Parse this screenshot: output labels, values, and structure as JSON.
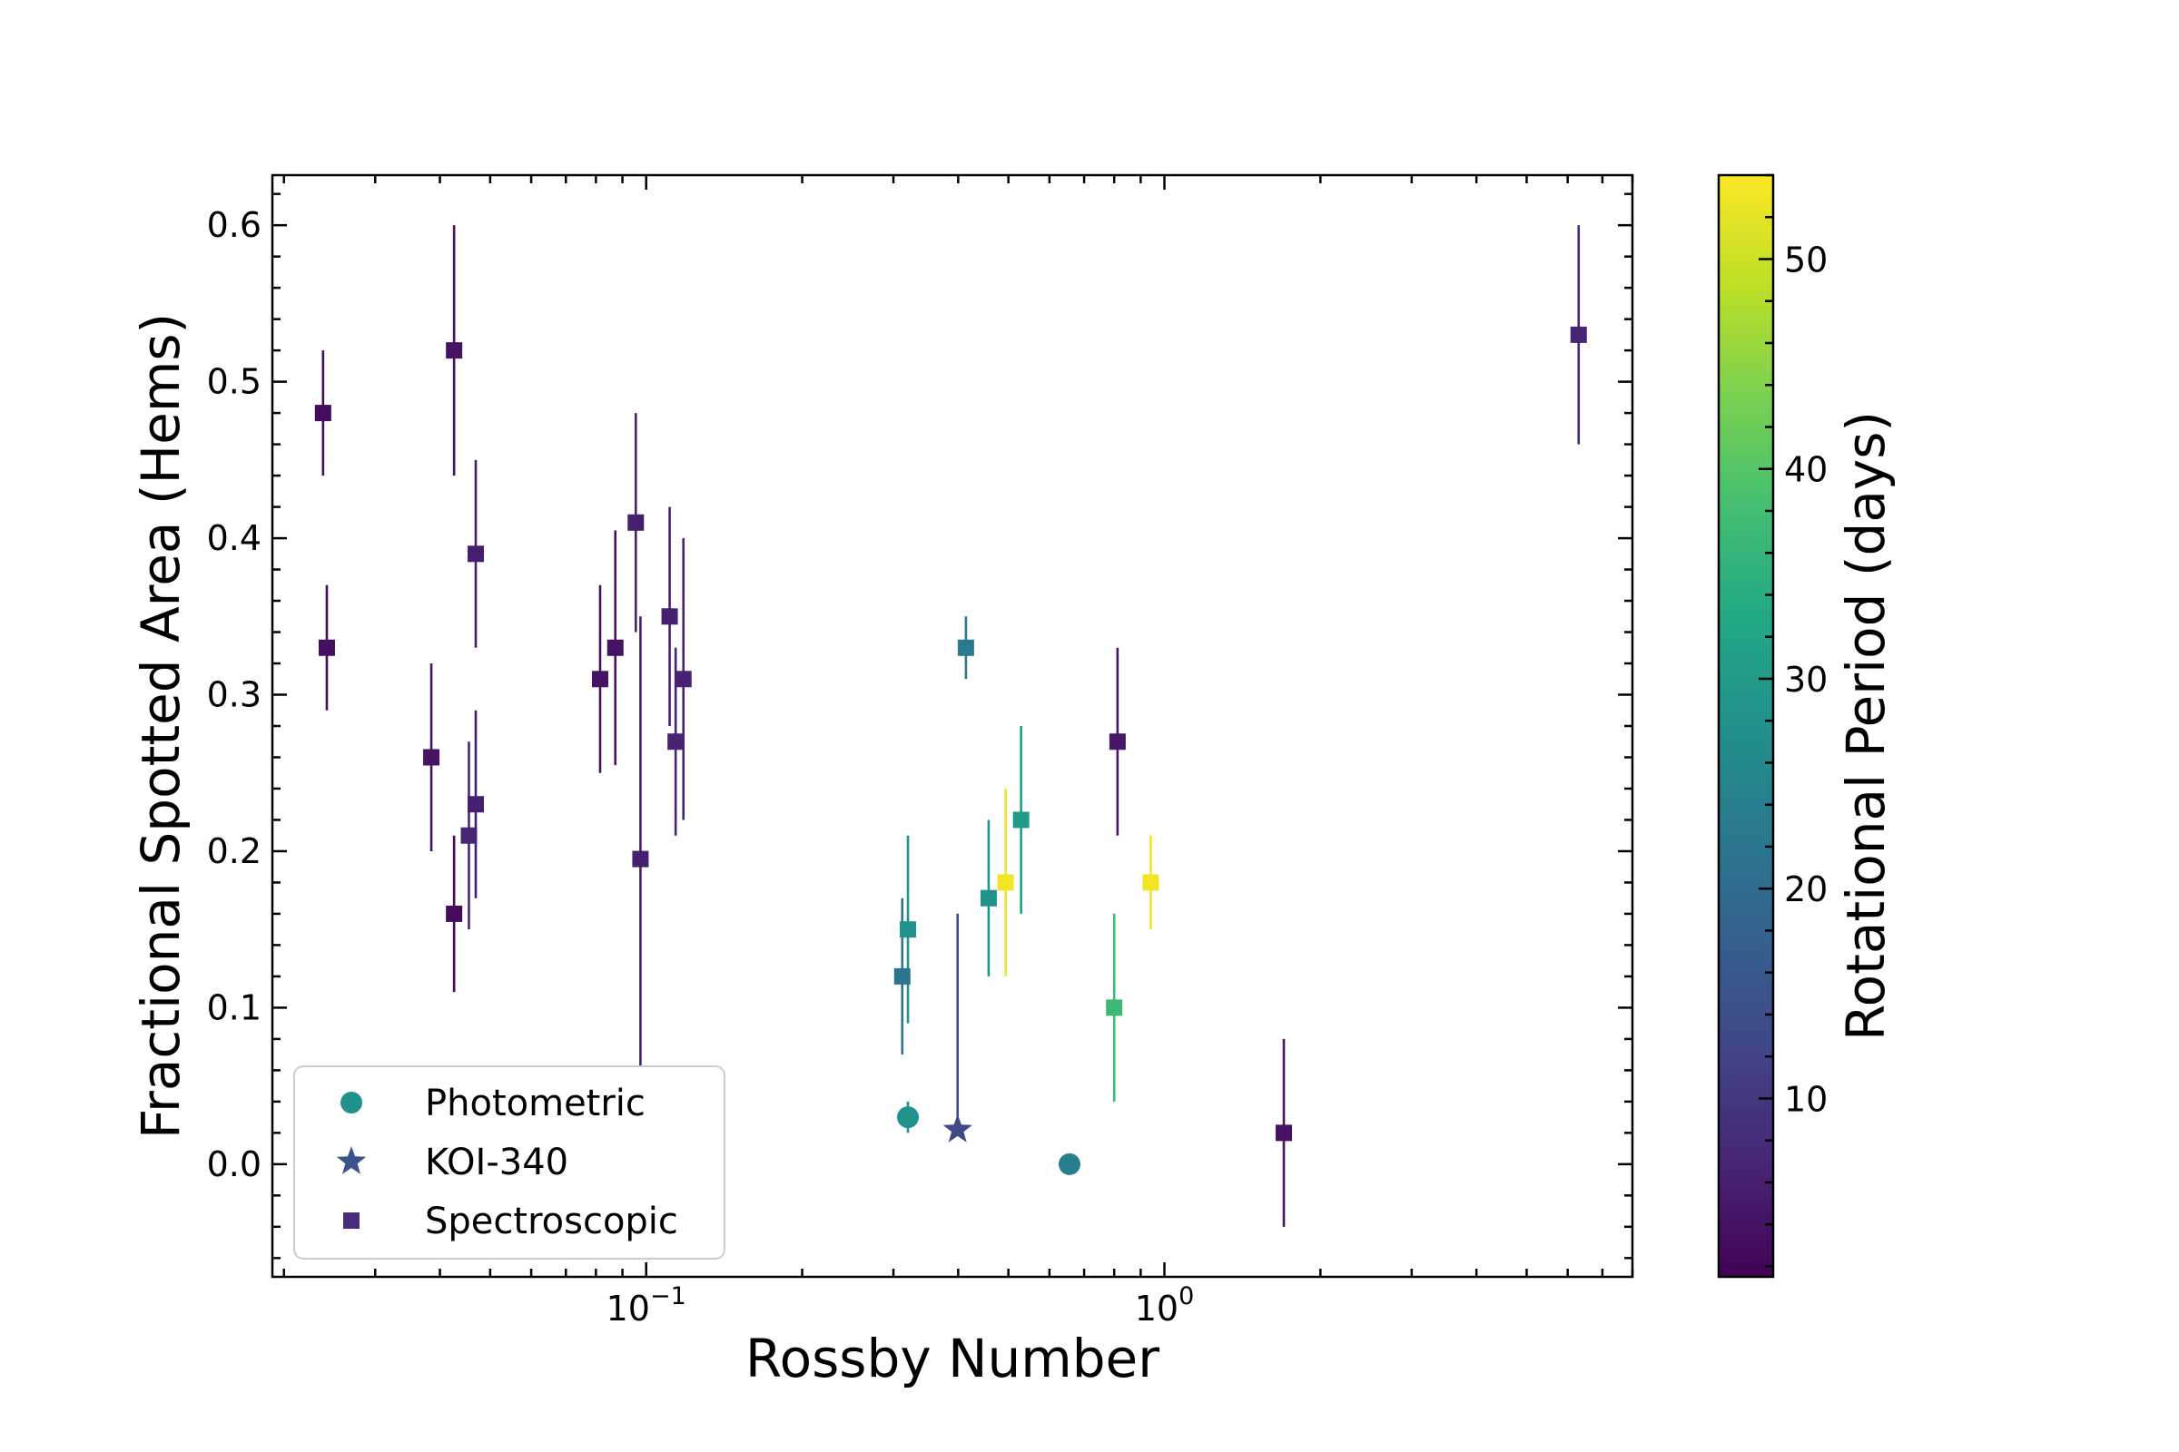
{
  "chart_data": {
    "type": "scatter",
    "xlabel": "Rossby Number",
    "ylabel": "Fractional Spotted Area (Hems)",
    "x_scale": "log",
    "xlim": [
      0.019,
      8.0
    ],
    "ylim": [
      -0.072,
      0.632
    ],
    "x_tick_labels": [
      {
        "value": 0.1,
        "base": "10",
        "exp": "−1"
      },
      {
        "value": 1,
        "base": "10",
        "exp": "0"
      }
    ],
    "y_ticks": [
      0.0,
      0.1,
      0.2,
      0.3,
      0.4,
      0.5,
      0.6
    ],
    "y_tick_labels": [
      "0.0",
      "0.1",
      "0.2",
      "0.3",
      "0.4",
      "0.5",
      "0.6"
    ],
    "colorbar": {
      "label": "Rotational Period (days)",
      "colormap": "viridis",
      "range": [
        1.5,
        54
      ],
      "ticks": [
        10,
        20,
        30,
        40,
        50
      ],
      "tick_labels": [
        "10",
        "20",
        "30",
        "40",
        "50"
      ]
    },
    "legend": {
      "placement": "lower-left",
      "entries": [
        {
          "label": "Photometric",
          "marker": "circle",
          "color": "#21918c"
        },
        {
          "label": "KOI-340",
          "marker": "star",
          "color": "#3b528b"
        },
        {
          "label": "Spectroscopic",
          "marker": "square",
          "color": "#472d7b"
        }
      ]
    },
    "series": [
      {
        "marker": "square",
        "points": [
          {
            "x": 0.0238,
            "y": 0.48,
            "ylow": 0.44,
            "yhigh": 0.52,
            "period": 3.0
          },
          {
            "x": 0.0242,
            "y": 0.33,
            "ylow": 0.29,
            "yhigh": 0.37,
            "period": 3.5
          },
          {
            "x": 0.0426,
            "y": 0.52,
            "ylow": 0.44,
            "yhigh": 0.6,
            "period": 4.0
          },
          {
            "x": 0.0469,
            "y": 0.39,
            "ylow": 0.33,
            "yhigh": 0.45,
            "period": 6.0
          },
          {
            "x": 0.0385,
            "y": 0.26,
            "ylow": 0.2,
            "yhigh": 0.32,
            "period": 4.0
          },
          {
            "x": 0.0455,
            "y": 0.21,
            "ylow": 0.15,
            "yhigh": 0.27,
            "period": 7.0
          },
          {
            "x": 0.0469,
            "y": 0.23,
            "ylow": 0.17,
            "yhigh": 0.29,
            "period": 6.0
          },
          {
            "x": 0.0426,
            "y": 0.16,
            "ylow": 0.11,
            "yhigh": 0.21,
            "period": 3.0
          },
          {
            "x": 0.0815,
            "y": 0.31,
            "ylow": 0.25,
            "yhigh": 0.37,
            "period": 4.0
          },
          {
            "x": 0.0872,
            "y": 0.33,
            "ylow": 0.255,
            "yhigh": 0.405,
            "period": 4.0
          },
          {
            "x": 0.0955,
            "y": 0.41,
            "ylow": 0.34,
            "yhigh": 0.48,
            "period": 6.0
          },
          {
            "x": 0.0975,
            "y": 0.195,
            "ylow": 0.06,
            "yhigh": 0.35,
            "period": 6.0
          },
          {
            "x": 0.111,
            "y": 0.35,
            "ylow": 0.28,
            "yhigh": 0.42,
            "period": 6.0
          },
          {
            "x": 0.114,
            "y": 0.27,
            "ylow": 0.21,
            "yhigh": 0.33,
            "period": 6.5
          },
          {
            "x": 0.118,
            "y": 0.31,
            "ylow": 0.22,
            "yhigh": 0.4,
            "period": 6.5
          },
          {
            "x": 0.312,
            "y": 0.12,
            "ylow": 0.07,
            "yhigh": 0.17,
            "period": 22.0
          },
          {
            "x": 0.32,
            "y": 0.15,
            "ylow": 0.09,
            "yhigh": 0.21,
            "period": 28.0
          },
          {
            "x": 0.414,
            "y": 0.33,
            "ylow": 0.31,
            "yhigh": 0.35,
            "period": 23.0
          },
          {
            "x": 0.458,
            "y": 0.17,
            "ylow": 0.12,
            "yhigh": 0.22,
            "period": 28.0
          },
          {
            "x": 0.494,
            "y": 0.18,
            "ylow": 0.12,
            "yhigh": 0.24,
            "period": 53.0
          },
          {
            "x": 0.529,
            "y": 0.22,
            "ylow": 0.16,
            "yhigh": 0.28,
            "period": 30.0
          },
          {
            "x": 0.8,
            "y": 0.1,
            "ylow": 0.04,
            "yhigh": 0.16,
            "period": 37.0
          },
          {
            "x": 0.812,
            "y": 0.27,
            "ylow": 0.21,
            "yhigh": 0.33,
            "period": 5.0
          },
          {
            "x": 0.941,
            "y": 0.18,
            "ylow": 0.15,
            "yhigh": 0.21,
            "period": 53.0
          },
          {
            "x": 1.7,
            "y": 0.02,
            "ylow": -0.04,
            "yhigh": 0.08,
            "period": 4.0
          },
          {
            "x": 6.3,
            "y": 0.53,
            "ylow": 0.46,
            "yhigh": 0.6,
            "period": 7.0
          }
        ]
      },
      {
        "marker": "circle",
        "points": [
          {
            "x": 0.32,
            "y": 0.03,
            "ylow": 0.02,
            "yhigh": 0.04,
            "period": 28.0
          },
          {
            "x": 0.656,
            "y": 0.0,
            "period": 24.0
          }
        ]
      },
      {
        "marker": "star",
        "points": [
          {
            "x": 0.399,
            "y": 0.022,
            "ylow": 0.022,
            "yhigh": 0.16,
            "period": 13.0
          }
        ]
      }
    ]
  }
}
